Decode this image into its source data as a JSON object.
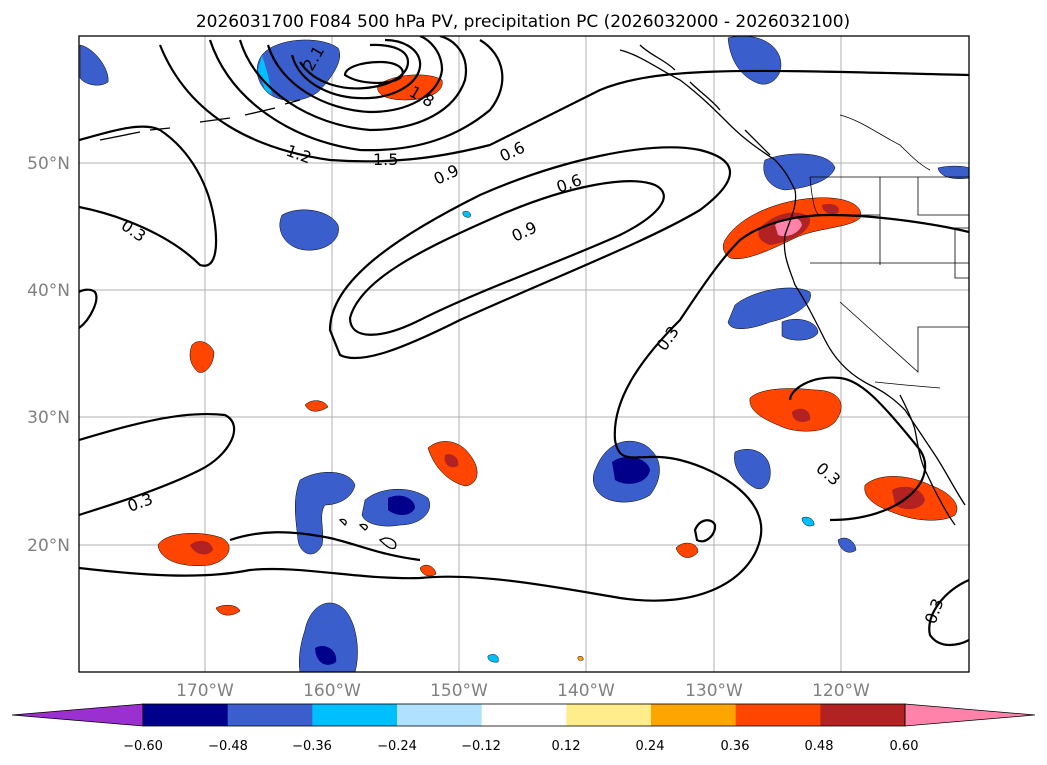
{
  "title": "2026031700 F084 500 hPa PV, precipitation PC (2026032000 - 2026032100)",
  "latitude_labels": [
    "50°N",
    "40°N",
    "30°N",
    "20°N"
  ],
  "longitude_labels": [
    "170°W",
    "160°W",
    "150°W",
    "140°W",
    "130°W",
    "120°W"
  ],
  "contour_labels": [
    "2.1",
    "1.8",
    "1.2",
    "1.5",
    "0.9",
    "0.6",
    "0.6",
    "0.9",
    "0.3",
    "0.3",
    "0.3",
    "0.3",
    "0.3"
  ],
  "colorbar": {
    "ticks": [
      "−0.60",
      "−0.48",
      "−0.36",
      "−0.24",
      "−0.12",
      "0.12",
      "0.24",
      "0.36",
      "0.48",
      "0.60"
    ],
    "colors": [
      "#9b30d0",
      "#00008b",
      "#3a5fcd",
      "#00bfff",
      "#b0e2ff",
      "#ffffff",
      "#ffec8b",
      "#ffa500",
      "#ff4500",
      "#b22222",
      "#ff82ab"
    ]
  },
  "colors": {
    "contour": "#000000",
    "grid": "#b0b0b0",
    "axis_text": "#808080"
  }
}
